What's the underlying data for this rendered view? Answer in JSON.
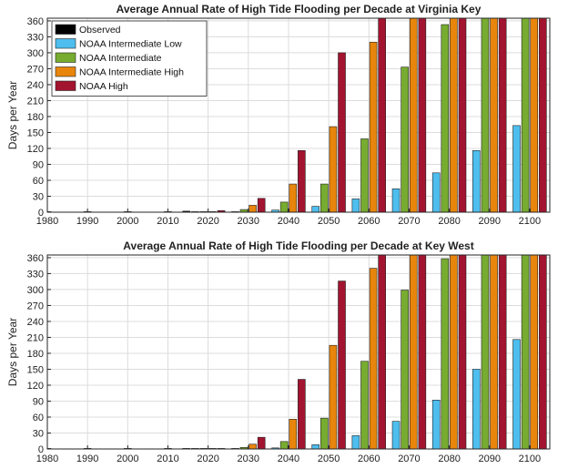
{
  "chart_data": [
    {
      "type": "bar",
      "title": "Average Annual Rate of High Tide Flooding per Decade at Virginia Key",
      "ylabel": "Days per Year",
      "xlabel": "",
      "categories": [
        "1980",
        "1990",
        "2000",
        "2010",
        "2020",
        "2030",
        "2040",
        "2050",
        "2060",
        "2070",
        "2080",
        "2090",
        "2100"
      ],
      "ylim": [
        0,
        365
      ],
      "yticks": [
        0,
        30,
        60,
        90,
        120,
        150,
        180,
        210,
        240,
        270,
        300,
        330,
        360
      ],
      "grid": true,
      "legend": "top-left",
      "series": [
        {
          "name": "Observed",
          "color": "#000000",
          "values": [
            0,
            0,
            0.5,
            1,
            2,
            null,
            null,
            null,
            null,
            null,
            null,
            null,
            null
          ]
        },
        {
          "name": "NOAA Intermediate Low",
          "color": "#4dbeee",
          "values": [
            null,
            null,
            null,
            null,
            0.3,
            1,
            4,
            11,
            25,
            44,
            74,
            116,
            163
          ]
        },
        {
          "name": "NOAA Intermediate",
          "color": "#77ac30",
          "values": [
            null,
            null,
            null,
            null,
            0.5,
            5,
            19,
            53,
            138,
            273,
            353,
            365,
            365
          ]
        },
        {
          "name": "NOAA Intermediate High",
          "color": "#e8850c",
          "values": [
            null,
            null,
            null,
            null,
            1,
            13,
            53,
            161,
            320,
            365,
            365,
            365,
            365
          ]
        },
        {
          "name": "NOAA High",
          "color": "#a2142f",
          "values": [
            null,
            null,
            null,
            null,
            3,
            26,
            116,
            300,
            365,
            365,
            365,
            365,
            365
          ]
        }
      ]
    },
    {
      "type": "bar",
      "title": "Average Annual Rate of High Tide Flooding per Decade at Key West",
      "ylabel": "Days per Year",
      "xlabel": "",
      "categories": [
        "1980",
        "1990",
        "2000",
        "2010",
        "2020",
        "2030",
        "2040",
        "2050",
        "2060",
        "2070",
        "2080",
        "2090",
        "2100"
      ],
      "ylim": [
        0,
        365
      ],
      "yticks": [
        0,
        30,
        60,
        90,
        120,
        150,
        180,
        210,
        240,
        270,
        300,
        330,
        360
      ],
      "grid": true,
      "legend": "none",
      "series": [
        {
          "name": "Observed",
          "color": "#000000",
          "values": [
            0,
            0,
            0,
            0.3,
            0.5,
            null,
            null,
            null,
            null,
            null,
            null,
            null,
            null
          ]
        },
        {
          "name": "NOAA Intermediate Low",
          "color": "#4dbeee",
          "values": [
            null,
            null,
            null,
            null,
            0.1,
            0.5,
            2,
            8,
            25,
            52,
            92,
            150,
            206
          ]
        },
        {
          "name": "NOAA Intermediate",
          "color": "#77ac30",
          "values": [
            null,
            null,
            null,
            null,
            0.2,
            3,
            14,
            58,
            165,
            299,
            358,
            365,
            365
          ]
        },
        {
          "name": "NOAA Intermediate High",
          "color": "#e8850c",
          "values": [
            null,
            null,
            null,
            null,
            0.5,
            9,
            56,
            195,
            340,
            365,
            365,
            365,
            365
          ]
        },
        {
          "name": "NOAA High",
          "color": "#a2142f",
          "values": [
            null,
            null,
            null,
            null,
            1,
            22,
            131,
            316,
            365,
            365,
            365,
            365,
            365
          ]
        }
      ]
    }
  ]
}
